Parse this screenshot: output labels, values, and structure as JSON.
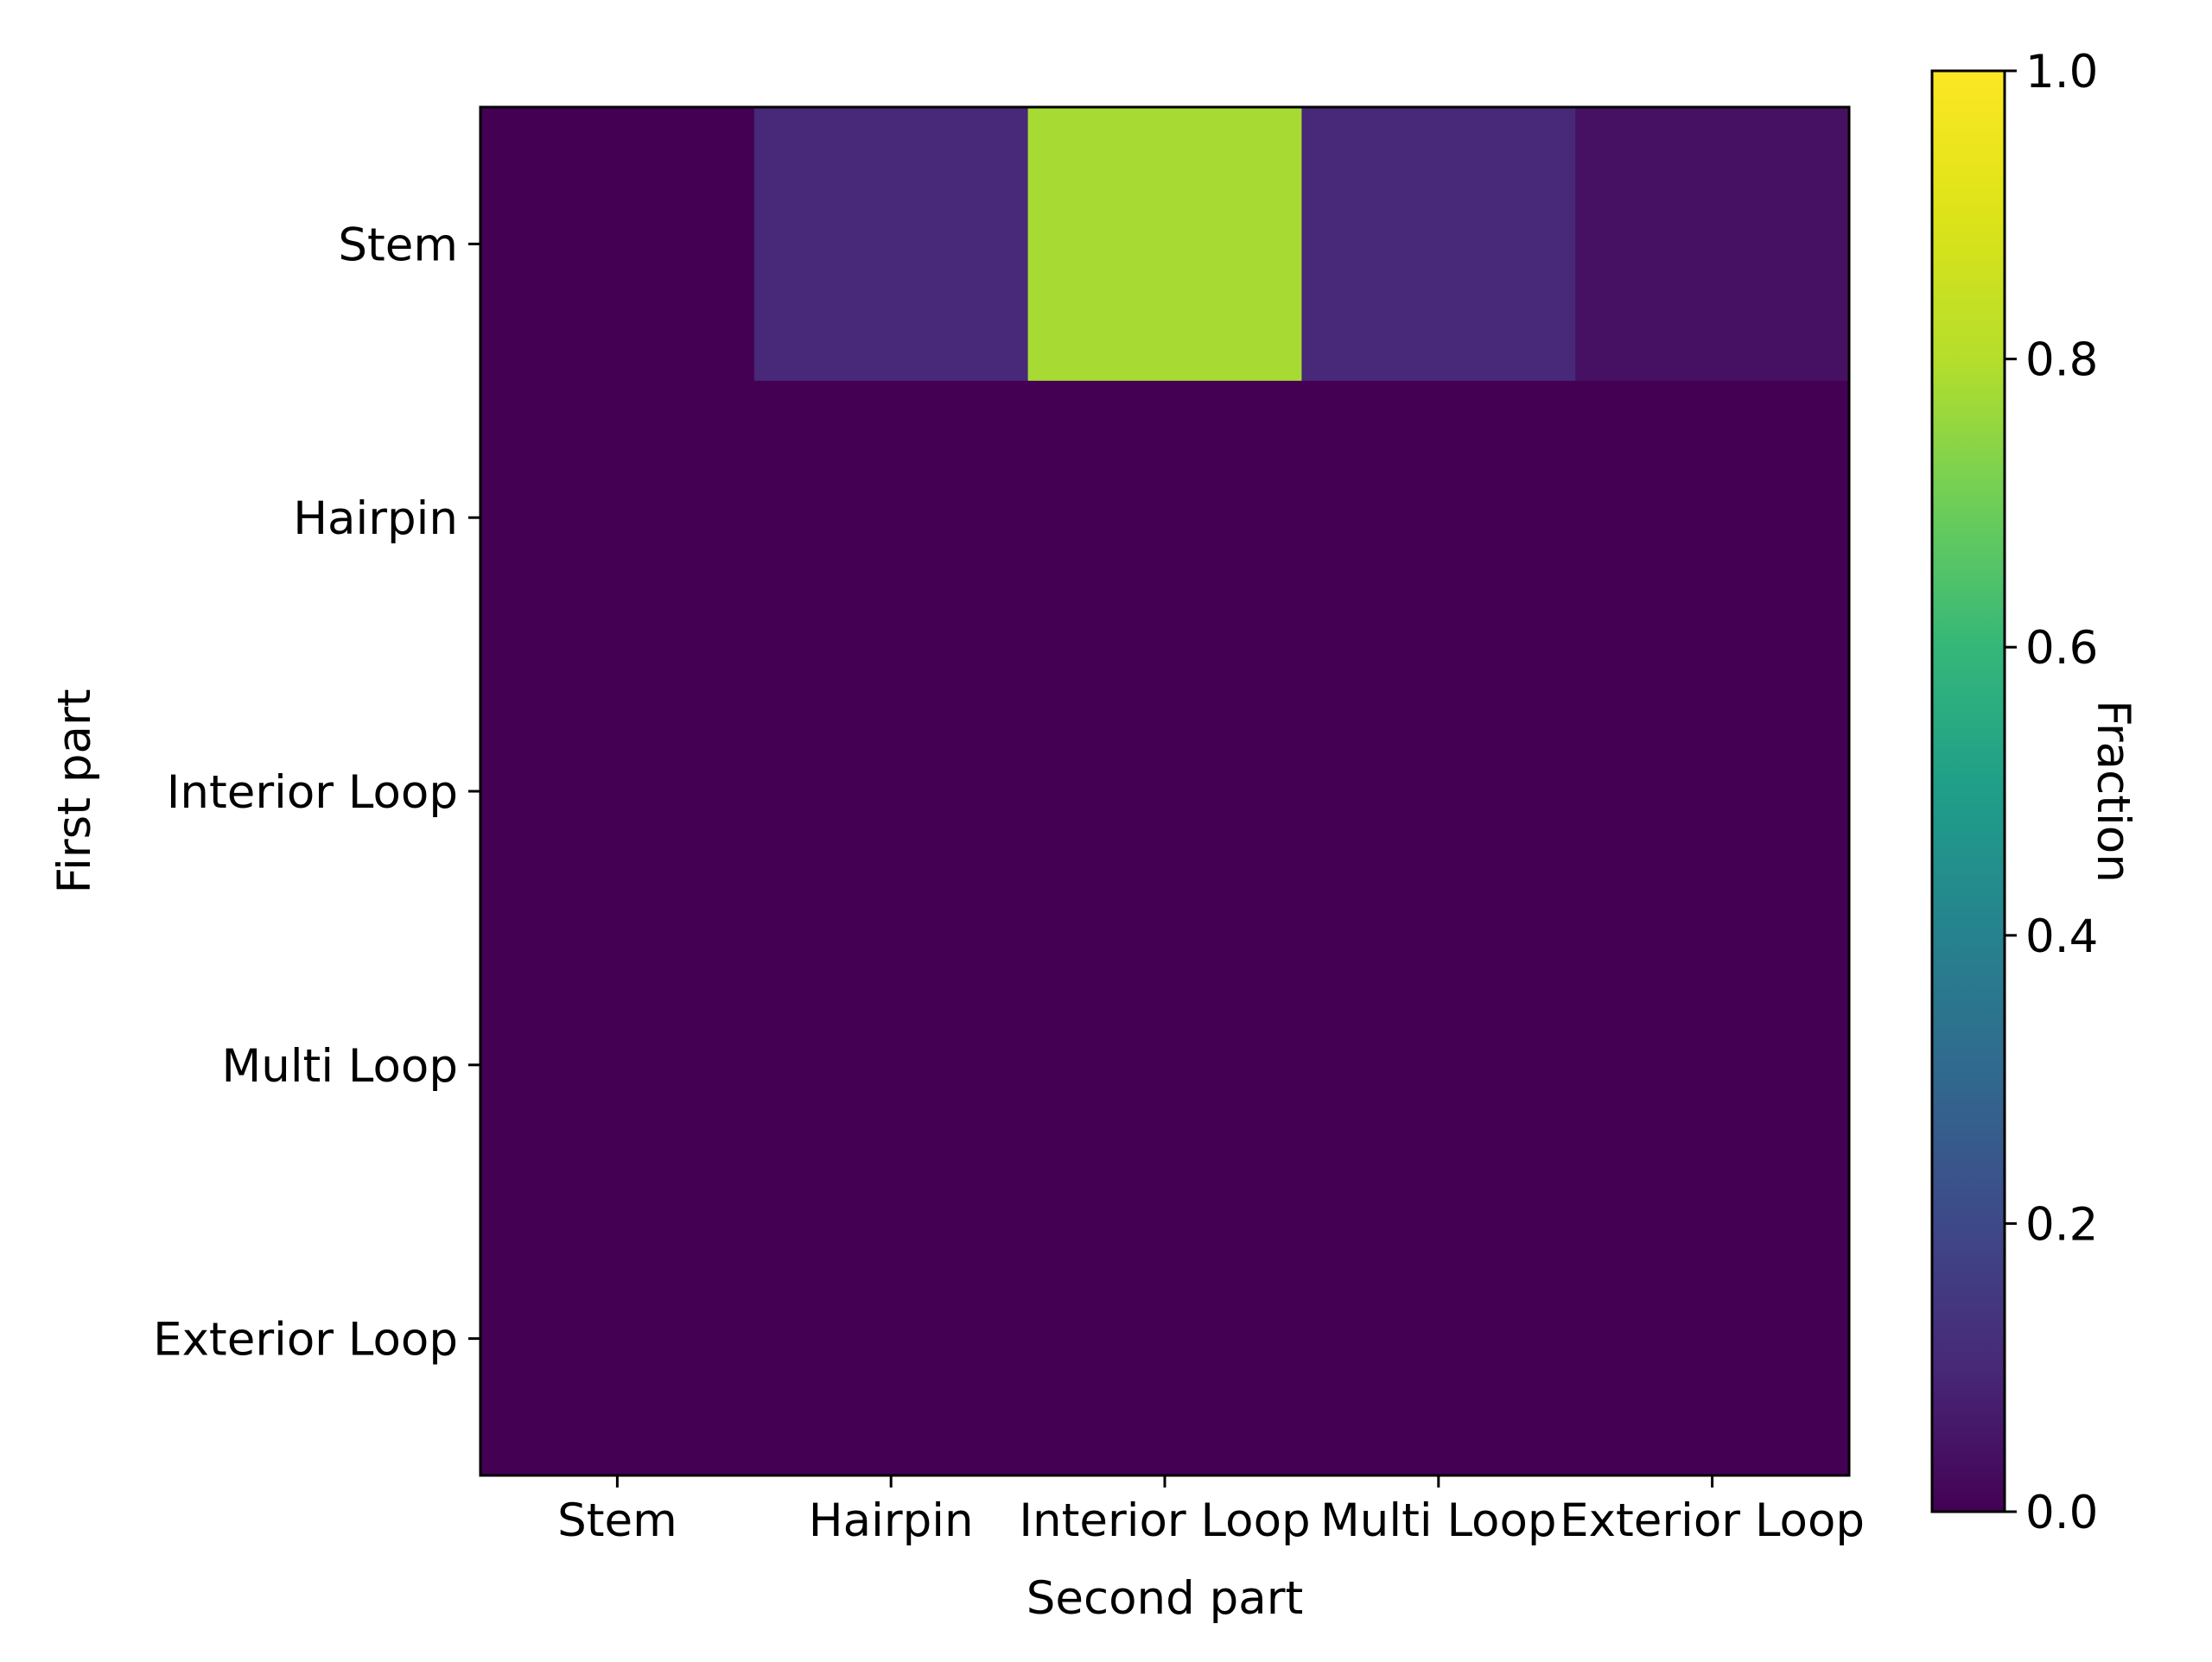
{
  "chart_data": {
    "type": "heatmap",
    "title": "",
    "xlabel": "Second part",
    "ylabel": "First part",
    "x_categories": [
      "Stem",
      "Hairpin",
      "Interior Loop",
      "Multi Loop",
      "Exterior Loop"
    ],
    "y_categories": [
      "Stem",
      "Hairpin",
      "Interior Loop",
      "Multi Loop",
      "Exterior Loop"
    ],
    "values": [
      [
        0.0,
        0.1,
        0.78,
        0.1,
        0.04
      ],
      [
        0.0,
        0.0,
        0.0,
        0.0,
        0.0
      ],
      [
        0.0,
        0.0,
        0.0,
        0.0,
        0.0
      ],
      [
        0.0,
        0.0,
        0.0,
        0.0,
        0.0
      ],
      [
        0.0,
        0.0,
        0.0,
        0.0,
        0.0
      ]
    ],
    "colormap": "viridis",
    "colorbar": {
      "label": "Fraction",
      "range": [
        0.0,
        1.0
      ],
      "ticks": [
        0.0,
        0.2,
        0.4,
        0.6,
        0.8,
        1.0
      ],
      "tick_labels": [
        "0.0",
        "0.2",
        "0.4",
        "0.6",
        "0.8",
        "1.0"
      ]
    },
    "grid": false
  }
}
